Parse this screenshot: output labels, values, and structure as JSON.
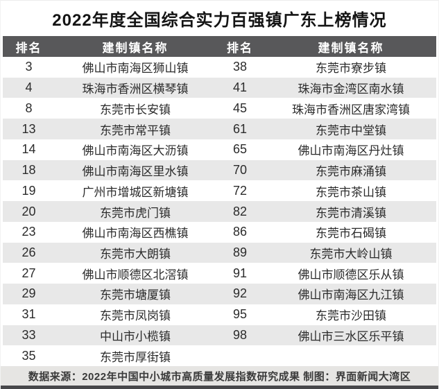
{
  "title": "2022年度全国综合实力百强镇广东上榜情况",
  "chart_data": {
    "type": "table",
    "title": "2022年度全国综合实力百强镇广东上榜情况",
    "columns": [
      "排名",
      "建制镇名称",
      "排名",
      "建制镇名称"
    ],
    "rows": [
      [
        "3",
        "佛山市南海区狮山镇",
        "38",
        "东莞市寮步镇"
      ],
      [
        "4",
        "珠海市香洲区横琴镇",
        "41",
        "珠海市金湾区南水镇"
      ],
      [
        "8",
        "东莞市长安镇",
        "45",
        "珠海市香洲区唐家湾镇"
      ],
      [
        "13",
        "东莞市常平镇",
        "61",
        "东莞市中堂镇"
      ],
      [
        "14",
        "佛山市南海区大沥镇",
        "65",
        "佛山市南海区丹灶镇"
      ],
      [
        "18",
        "佛山市南海区里水镇",
        "70",
        "东莞市麻涌镇"
      ],
      [
        "19",
        "广州市增城区新塘镇",
        "72",
        "东莞市茶山镇"
      ],
      [
        "20",
        "东莞市虎门镇",
        "82",
        "东莞市清溪镇"
      ],
      [
        "23",
        "佛山市南海区西樵镇",
        "86",
        "东莞市石碣镇"
      ],
      [
        "26",
        "东莞市大朗镇",
        "89",
        "东莞市大岭山镇"
      ],
      [
        "27",
        "佛山市顺德区北滘镇",
        "91",
        "佛山市顺德区乐从镇"
      ],
      [
        "29",
        "东莞市塘厦镇",
        "92",
        "佛山市南海区九江镇"
      ],
      [
        "31",
        "东莞市凤岗镇",
        "95",
        "东莞市沙田镇"
      ],
      [
        "33",
        "中山市小榄镇",
        "98",
        "佛山市三水区乐平镇"
      ],
      [
        "35",
        "东莞市厚街镇",
        "",
        ""
      ]
    ]
  },
  "footer": {
    "source_text": "数据来源：2022年中国中小城市高质量发展指数研究成果 制图：界面新闻大湾区"
  },
  "colors": {
    "page-bg": "#ffffff",
    "title-color": "#141414",
    "header-bg": "#58585a",
    "header-text": "#ffffff",
    "stripe-bg": "#e8e8e8",
    "cell-text": "#2b2b2b",
    "footer-bg": "#e6e5e3",
    "footer-text": "#3a3a3a",
    "bottom-bar": "#47474a"
  }
}
